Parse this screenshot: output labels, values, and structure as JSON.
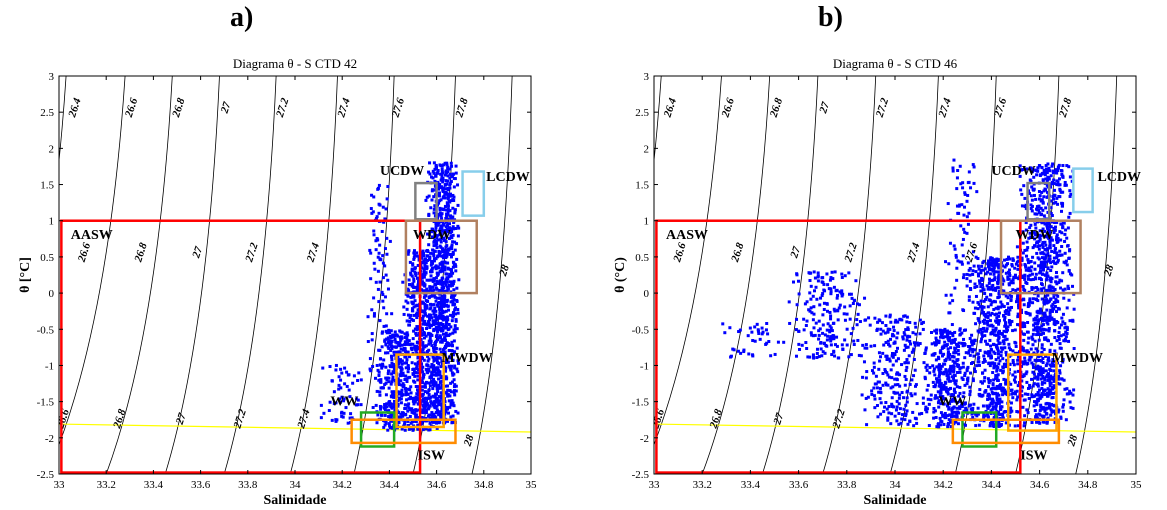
{
  "panel_labels": [
    "a)",
    "b)"
  ],
  "chart_data": [
    {
      "type": "scatter",
      "title": "Diagrama θ - S CTD 42",
      "xlabel": "Salinidade",
      "ylabel": "θ [°C]",
      "xlim": [
        33,
        35
      ],
      "ylim": [
        -2.5,
        3
      ],
      "xticks": [
        "33",
        "33.2",
        "33.4",
        "33.6",
        "33.8",
        "34",
        "34.2",
        "34.4",
        "34.6",
        "34.8",
        "35"
      ],
      "yticks": [
        "-2.5",
        "-2",
        "-1.5",
        "-1",
        "-0.5",
        "0",
        "0.5",
        "1",
        "1.5",
        "2",
        "2.5",
        "3"
      ],
      "grid": false,
      "point_color": "#0000ff",
      "freezing_line": {
        "color": "#ffff00",
        "points": [
          [
            33,
            -1.81
          ],
          [
            35,
            -1.92
          ]
        ]
      },
      "isopycnals": [
        {
          "label": "26.4",
          "top_s": 33.03,
          "bottom_s": 32.7,
          "tag_s": 33.08,
          "tag_t": 2.55
        },
        {
          "label": "26.6",
          "top_s": 33.28,
          "bottom_s": 32.95,
          "tag_s": 33.32,
          "tag_t": 2.55
        },
        {
          "label": "26.8",
          "top_s": 33.48,
          "bottom_s": 33.2,
          "tag_s": 33.52,
          "tag_t": 2.55
        },
        {
          "label": "27",
          "top_s": 33.68,
          "bottom_s": 33.45,
          "tag_s": 33.72,
          "tag_t": 2.55
        },
        {
          "label": "27.2",
          "top_s": 33.92,
          "bottom_s": 33.7,
          "tag_s": 33.96,
          "tag_t": 2.55
        },
        {
          "label": "27.4",
          "top_s": 34.18,
          "bottom_s": 33.98,
          "tag_s": 34.22,
          "tag_t": 2.55
        },
        {
          "label": "27.6",
          "top_s": 34.42,
          "bottom_s": 34.25,
          "tag_s": 34.45,
          "tag_t": 2.55
        },
        {
          "label": "27.8",
          "top_s": 34.68,
          "bottom_s": 34.5,
          "tag_s": 34.72,
          "tag_t": 2.55
        },
        {
          "label": "28",
          "top_s": 34.92,
          "bottom_s": 34.75,
          "tag_s": 34.9,
          "tag_t": 0.3
        }
      ],
      "inner_labels": [
        {
          "text": "26.6",
          "s": 33.12,
          "t": 0.55
        },
        {
          "text": "26.8",
          "s": 33.36,
          "t": 0.55
        },
        {
          "text": "27",
          "s": 33.6,
          "t": 0.55
        },
        {
          "text": "27.2",
          "s": 33.83,
          "t": 0.55
        },
        {
          "text": "27.4",
          "s": 34.09,
          "t": 0.55
        },
        {
          "text": "26.6",
          "s": 33.03,
          "t": -1.75
        },
        {
          "text": "26.8",
          "s": 33.27,
          "t": -1.75
        },
        {
          "text": "27",
          "s": 33.53,
          "t": -1.75
        },
        {
          "text": "27.2",
          "s": 33.78,
          "t": -1.75
        },
        {
          "text": "27.4",
          "s": 34.05,
          "t": -1.75
        },
        {
          "text": "28",
          "s": 34.75,
          "t": -2.05
        }
      ],
      "water_masses": [
        {
          "name": "AASW",
          "color": "#ff0000",
          "s_min": 33.01,
          "s_max": 34.53,
          "t_min": -2.48,
          "t_max": 1.0,
          "label_s": 33.05,
          "label_t": 0.75
        },
        {
          "name": "UCDW",
          "color": "#808080",
          "s_min": 34.51,
          "s_max": 34.6,
          "t_min": 1.02,
          "t_max": 1.52,
          "label_s": 34.36,
          "label_t": 1.63
        },
        {
          "name": "LCDW",
          "color": "#87ceeb",
          "s_min": 34.71,
          "s_max": 34.8,
          "t_min": 1.07,
          "t_max": 1.68,
          "label_s": 34.81,
          "label_t": 1.55
        },
        {
          "name": "WDW",
          "color": "#b08060",
          "s_min": 34.47,
          "s_max": 34.77,
          "t_min": 0.0,
          "t_max": 1.0,
          "label_s": 34.5,
          "label_t": 0.75
        },
        {
          "name": "MWDW",
          "color": "#ffa500",
          "s_min": 34.43,
          "s_max": 34.63,
          "t_min": -1.85,
          "t_max": -0.85,
          "label_s": 34.62,
          "label_t": -0.95
        },
        {
          "name": "WW",
          "color": "#22aa22",
          "s_min": 34.28,
          "s_max": 34.42,
          "t_min": -2.12,
          "t_max": -1.65,
          "label_s": 34.15,
          "label_t": -1.55
        },
        {
          "name": "ISW",
          "color": "#ff8c00",
          "s_min": 34.24,
          "s_max": 34.68,
          "t_min": -2.07,
          "t_max": -1.75,
          "label_s": 34.52,
          "label_t": -2.3
        }
      ],
      "clusters": [
        {
          "s": [
            34.55,
            34.7
          ],
          "t": [
            -1.8,
            1.8
          ],
          "n": 900
        },
        {
          "s": [
            34.45,
            34.62
          ],
          "t": [
            -1.9,
            0.6
          ],
          "n": 600
        },
        {
          "s": [
            34.35,
            34.5
          ],
          "t": [
            -1.9,
            -0.5
          ],
          "n": 300
        },
        {
          "s": [
            34.3,
            34.42
          ],
          "t": [
            -1.8,
            1.5
          ],
          "n": 120
        },
        {
          "s": [
            34.1,
            34.3
          ],
          "t": [
            -1.8,
            -1.0
          ],
          "n": 60
        }
      ]
    },
    {
      "type": "scatter",
      "title": "Diagrama θ - S CTD 46",
      "xlabel": "Salinidade",
      "ylabel": "θ (°C)",
      "xlim": [
        33,
        35
      ],
      "ylim": [
        -2.5,
        3
      ],
      "xticks": [
        "33",
        "33.2",
        "33.4",
        "33.6",
        "33.8",
        "34",
        "34.2",
        "34.4",
        "34.6",
        "34.8",
        "35"
      ],
      "yticks": [
        "-2.5",
        "-2",
        "-1.5",
        "-1",
        "-0.5",
        "0",
        "0.5",
        "1",
        "1.5",
        "2",
        "2.5",
        "3"
      ],
      "grid": false,
      "point_color": "#0000ff",
      "freezing_line": {
        "color": "#ffff00",
        "points": [
          [
            33,
            -1.81
          ],
          [
            35,
            -1.92
          ]
        ]
      },
      "isopycnals": [
        {
          "label": "26.4",
          "top_s": 33.03,
          "bottom_s": 32.7,
          "tag_s": 33.08,
          "tag_t": 2.55
        },
        {
          "label": "26.6",
          "top_s": 33.28,
          "bottom_s": 32.95,
          "tag_s": 33.32,
          "tag_t": 2.55
        },
        {
          "label": "26.8",
          "top_s": 33.48,
          "bottom_s": 33.2,
          "tag_s": 33.52,
          "tag_t": 2.55
        },
        {
          "label": "27",
          "top_s": 33.68,
          "bottom_s": 33.45,
          "tag_s": 33.72,
          "tag_t": 2.55
        },
        {
          "label": "27.2",
          "top_s": 33.92,
          "bottom_s": 33.7,
          "tag_s": 33.96,
          "tag_t": 2.55
        },
        {
          "label": "27.4",
          "top_s": 34.18,
          "bottom_s": 33.98,
          "tag_s": 34.22,
          "tag_t": 2.55
        },
        {
          "label": "27.6",
          "top_s": 34.42,
          "bottom_s": 34.25,
          "tag_s": 34.45,
          "tag_t": 2.55
        },
        {
          "label": "27.8",
          "top_s": 34.68,
          "bottom_s": 34.5,
          "tag_s": 34.72,
          "tag_t": 2.55
        },
        {
          "label": "28",
          "top_s": 34.92,
          "bottom_s": 34.75,
          "tag_s": 34.9,
          "tag_t": 0.3
        }
      ],
      "inner_labels": [
        {
          "text": "26.6",
          "s": 33.12,
          "t": 0.55
        },
        {
          "text": "26.8",
          "s": 33.36,
          "t": 0.55
        },
        {
          "text": "27",
          "s": 33.6,
          "t": 0.55
        },
        {
          "text": "27.2",
          "s": 33.83,
          "t": 0.55
        },
        {
          "text": "27.4",
          "s": 34.09,
          "t": 0.55
        },
        {
          "text": "27.6",
          "s": 34.33,
          "t": 0.55
        },
        {
          "text": "26.6",
          "s": 33.03,
          "t": -1.75
        },
        {
          "text": "26.8",
          "s": 33.27,
          "t": -1.75
        },
        {
          "text": "27",
          "s": 33.53,
          "t": -1.75
        },
        {
          "text": "27.2",
          "s": 33.78,
          "t": -1.75
        },
        {
          "text": "28",
          "s": 34.75,
          "t": -2.05
        }
      ],
      "water_masses": [
        {
          "name": "AASW",
          "color": "#ff0000",
          "s_min": 33.01,
          "s_max": 34.52,
          "t_min": -2.48,
          "t_max": 1.0,
          "label_s": 33.05,
          "label_t": 0.75
        },
        {
          "name": "UCDW",
          "color": "#808080",
          "s_min": 34.55,
          "s_max": 34.64,
          "t_min": 1.02,
          "t_max": 1.52,
          "label_s": 34.4,
          "label_t": 1.63
        },
        {
          "name": "LCDW",
          "color": "#87ceeb",
          "s_min": 34.74,
          "s_max": 34.82,
          "t_min": 1.12,
          "t_max": 1.72,
          "label_s": 34.84,
          "label_t": 1.55
        },
        {
          "name": "WDW",
          "color": "#b08060",
          "s_min": 34.44,
          "s_max": 34.77,
          "t_min": 0.0,
          "t_max": 1.0,
          "label_s": 34.5,
          "label_t": 0.75
        },
        {
          "name": "MWDW",
          "color": "#ffa500",
          "s_min": 34.47,
          "s_max": 34.67,
          "t_min": -1.9,
          "t_max": -0.85,
          "label_s": 34.65,
          "label_t": -0.95
        },
        {
          "name": "WW",
          "color": "#22aa22",
          "s_min": 34.28,
          "s_max": 34.42,
          "t_min": -2.12,
          "t_max": -1.65,
          "label_s": 34.18,
          "label_t": -1.55
        },
        {
          "name": "ISW",
          "color": "#ff8c00",
          "s_min": 34.24,
          "s_max": 34.68,
          "t_min": -2.07,
          "t_max": -1.75,
          "label_s": 34.52,
          "label_t": -2.3
        }
      ],
      "clusters": [
        {
          "s": [
            34.5,
            34.75
          ],
          "t": [
            -1.8,
            1.8
          ],
          "n": 1000
        },
        {
          "s": [
            34.3,
            34.55
          ],
          "t": [
            -1.85,
            0.5
          ],
          "n": 700
        },
        {
          "s": [
            34.1,
            34.35
          ],
          "t": [
            -1.85,
            -0.5
          ],
          "n": 400
        },
        {
          "s": [
            33.85,
            34.15
          ],
          "t": [
            -1.85,
            -0.3
          ],
          "n": 250
        },
        {
          "s": [
            33.55,
            33.9
          ],
          "t": [
            -0.9,
            0.3
          ],
          "n": 200
        },
        {
          "s": [
            33.25,
            33.55
          ],
          "t": [
            -0.9,
            -0.4
          ],
          "n": 40
        },
        {
          "s": [
            34.2,
            34.35
          ],
          "t": [
            -0.5,
            1.9
          ],
          "n": 80
        }
      ]
    }
  ]
}
